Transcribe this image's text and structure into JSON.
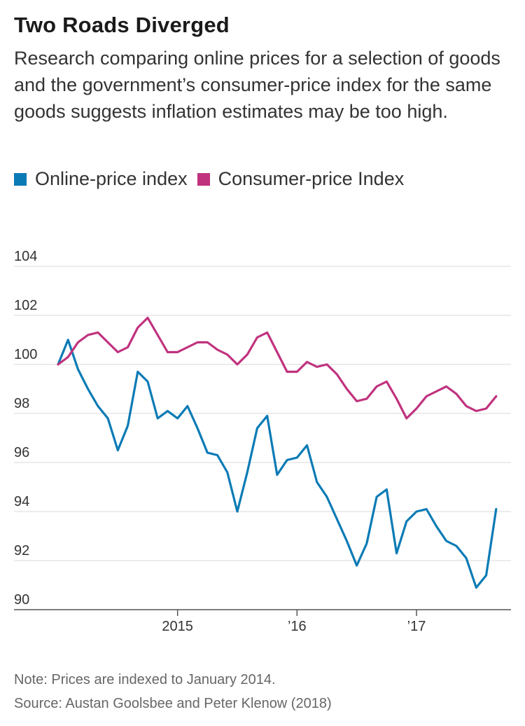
{
  "title": "Two Roads Diverged",
  "subtitle": "Research comparing online prices for a selection of goods and the government’s consumer-price index for the same goods suggests inflation estimates may be too high.",
  "legend": {
    "online_label": "Online-price index",
    "cpi_label": "Consumer-price Index"
  },
  "colors": {
    "online": "#0b7bb5",
    "cpi": "#c0327e",
    "grid": "#d9d9d9",
    "axis": "#555555"
  },
  "footer": {
    "note": "Note: Prices are indexed to January 2014.",
    "source": "Source: Austan Goolsbee and Peter Klenow (2018)"
  },
  "chart_data": {
    "type": "line",
    "title": "Two Roads Diverged",
    "xlabel": "",
    "ylabel": "",
    "ylim": [
      90,
      104
    ],
    "yticks": [
      90,
      92,
      94,
      96,
      98,
      100,
      102,
      104
    ],
    "xlim": [
      0,
      45
    ],
    "xticks": [
      {
        "x": 12,
        "label": "2015"
      },
      {
        "x": 24,
        "label": "’16"
      },
      {
        "x": 36,
        "label": "’17"
      }
    ],
    "grid": true,
    "x": [
      0,
      1,
      2,
      3,
      4,
      5,
      6,
      7,
      8,
      9,
      10,
      11,
      12,
      13,
      14,
      15,
      16,
      17,
      18,
      19,
      20,
      21,
      22,
      23,
      24,
      25,
      26,
      27,
      28,
      29,
      30,
      31,
      32,
      33,
      34,
      35,
      36,
      37,
      38,
      39,
      40,
      41,
      42,
      43,
      44,
      45
    ],
    "series": [
      {
        "name": "Online-price index",
        "values": [
          100.0,
          101.0,
          99.8,
          99.0,
          98.3,
          97.8,
          96.5,
          97.5,
          99.7,
          99.3,
          97.8,
          98.1,
          97.8,
          98.3,
          97.4,
          96.4,
          96.3,
          95.6,
          94.0,
          95.6,
          97.4,
          97.9,
          95.5,
          96.1,
          96.2,
          96.7,
          95.2,
          94.6,
          93.7,
          92.8,
          91.8,
          92.7,
          94.6,
          94.9,
          92.3,
          93.6,
          94.0,
          94.1,
          93.4,
          92.8,
          92.6,
          92.1,
          90.9,
          91.4,
          94.1,
          null
        ]
      },
      {
        "name": "Consumer-price Index",
        "values": [
          100.0,
          100.3,
          100.9,
          101.2,
          101.3,
          100.9,
          100.5,
          100.7,
          101.5,
          101.9,
          101.2,
          100.5,
          100.5,
          100.7,
          100.9,
          100.9,
          100.6,
          100.4,
          100.0,
          100.4,
          101.1,
          101.3,
          100.5,
          99.7,
          99.7,
          100.1,
          99.9,
          100.0,
          99.6,
          99.0,
          98.5,
          98.6,
          99.1,
          99.3,
          98.6,
          97.8,
          98.2,
          98.7,
          98.9,
          99.1,
          98.8,
          98.3,
          98.1,
          98.2,
          98.7,
          null
        ]
      }
    ]
  }
}
